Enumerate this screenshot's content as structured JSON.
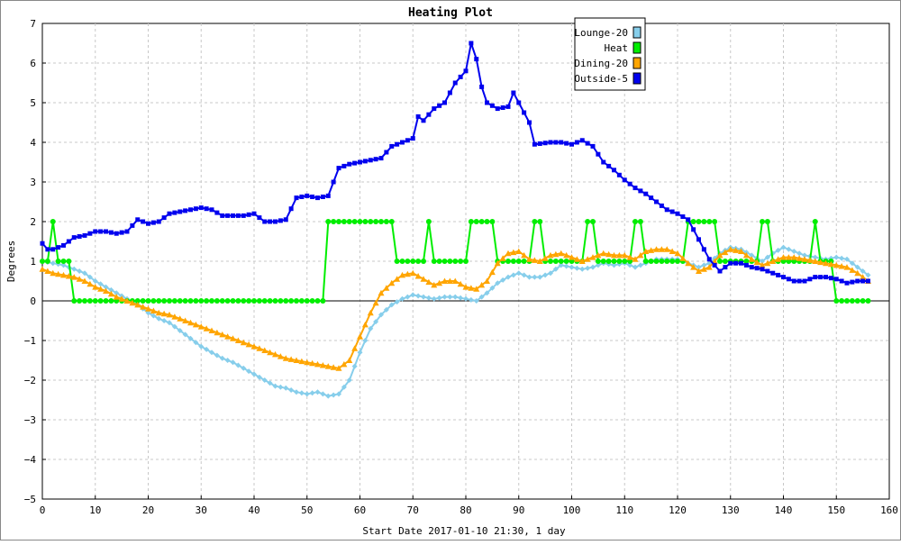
{
  "chart_data": {
    "type": "line",
    "title": "Heating Plot",
    "xlabel": "Start Date 2017-01-10 21:30, 1 day",
    "ylabel": "Degrees",
    "xlim": [
      0,
      160
    ],
    "ylim": [
      -5,
      7
    ],
    "x_ticks": [
      0,
      10,
      20,
      30,
      40,
      50,
      60,
      70,
      80,
      90,
      100,
      110,
      120,
      130,
      140,
      150,
      160
    ],
    "y_ticks": [
      -5,
      -4,
      -3,
      -2,
      -1,
      0,
      1,
      2,
      3,
      4,
      5,
      6,
      7
    ],
    "grid": true,
    "legend_position": "top-right",
    "series": [
      {
        "name": "Lounge-20",
        "color": "#87ceeb",
        "marker": "diamond",
        "points": [
          [
            0,
            1.0
          ],
          [
            2,
            0.95
          ],
          [
            4,
            0.9
          ],
          [
            6,
            0.8
          ],
          [
            8,
            0.7
          ],
          [
            10,
            0.5
          ],
          [
            12,
            0.35
          ],
          [
            14,
            0.2
          ],
          [
            16,
            0.05
          ],
          [
            18,
            -0.1
          ],
          [
            20,
            -0.3
          ],
          [
            22,
            -0.45
          ],
          [
            24,
            -0.55
          ],
          [
            26,
            -0.75
          ],
          [
            28,
            -0.95
          ],
          [
            30,
            -1.15
          ],
          [
            32,
            -1.3
          ],
          [
            34,
            -1.45
          ],
          [
            36,
            -1.55
          ],
          [
            38,
            -1.7
          ],
          [
            40,
            -1.85
          ],
          [
            42,
            -2.0
          ],
          [
            44,
            -2.15
          ],
          [
            46,
            -2.2
          ],
          [
            48,
            -2.3
          ],
          [
            50,
            -2.35
          ],
          [
            52,
            -2.3
          ],
          [
            54,
            -2.4
          ],
          [
            56,
            -2.35
          ],
          [
            58,
            -2.0
          ],
          [
            60,
            -1.3
          ],
          [
            62,
            -0.7
          ],
          [
            64,
            -0.35
          ],
          [
            66,
            -0.1
          ],
          [
            68,
            0.05
          ],
          [
            70,
            0.15
          ],
          [
            72,
            0.1
          ],
          [
            74,
            0.05
          ],
          [
            76,
            0.1
          ],
          [
            78,
            0.1
          ],
          [
            80,
            0.05
          ],
          [
            82,
            0.0
          ],
          [
            84,
            0.2
          ],
          [
            86,
            0.45
          ],
          [
            88,
            0.6
          ],
          [
            90,
            0.7
          ],
          [
            92,
            0.6
          ],
          [
            94,
            0.6
          ],
          [
            96,
            0.7
          ],
          [
            98,
            0.9
          ],
          [
            100,
            0.85
          ],
          [
            102,
            0.8
          ],
          [
            104,
            0.85
          ],
          [
            106,
            0.95
          ],
          [
            108,
            0.9
          ],
          [
            110,
            0.95
          ],
          [
            112,
            0.85
          ],
          [
            114,
            0.95
          ],
          [
            116,
            1.05
          ],
          [
            118,
            1.05
          ],
          [
            120,
            1.05
          ],
          [
            122,
            0.95
          ],
          [
            124,
            0.85
          ],
          [
            126,
            0.95
          ],
          [
            128,
            1.2
          ],
          [
            130,
            1.35
          ],
          [
            132,
            1.3
          ],
          [
            134,
            1.15
          ],
          [
            136,
            1.0
          ],
          [
            138,
            1.2
          ],
          [
            140,
            1.35
          ],
          [
            142,
            1.25
          ],
          [
            144,
            1.15
          ],
          [
            146,
            1.1
          ],
          [
            148,
            1.05
          ],
          [
            150,
            1.1
          ],
          [
            152,
            1.05
          ],
          [
            154,
            0.85
          ],
          [
            156,
            0.65
          ]
        ]
      },
      {
        "name": "Heat",
        "color": "#00ee00",
        "marker": "circle",
        "points": [
          [
            0,
            1
          ],
          [
            1,
            1
          ],
          [
            2,
            2
          ],
          [
            3,
            1
          ],
          [
            4,
            1
          ],
          [
            5,
            1
          ],
          [
            6,
            0
          ],
          [
            53,
            0
          ],
          [
            54,
            2
          ],
          [
            66,
            2
          ],
          [
            67,
            1
          ],
          [
            72,
            1
          ],
          [
            73,
            2
          ],
          [
            74,
            1
          ],
          [
            80,
            1
          ],
          [
            81,
            2
          ],
          [
            85,
            2
          ],
          [
            86,
            1
          ],
          [
            92,
            1
          ],
          [
            93,
            2
          ],
          [
            94,
            2
          ],
          [
            95,
            1
          ],
          [
            102,
            1
          ],
          [
            103,
            2
          ],
          [
            104,
            2
          ],
          [
            105,
            1
          ],
          [
            111,
            1
          ],
          [
            112,
            2
          ],
          [
            113,
            2
          ],
          [
            114,
            1
          ],
          [
            121,
            1
          ],
          [
            122,
            2
          ],
          [
            127,
            2
          ],
          [
            128,
            1
          ],
          [
            135,
            1
          ],
          [
            136,
            2
          ],
          [
            137,
            2
          ],
          [
            138,
            1
          ],
          [
            145,
            1
          ],
          [
            146,
            2
          ],
          [
            147,
            1
          ],
          [
            149,
            1
          ],
          [
            150,
            0
          ],
          [
            156,
            0
          ]
        ]
      },
      {
        "name": "Dining-20",
        "color": "#ffa500",
        "marker": "triangle",
        "points": [
          [
            0,
            0.8
          ],
          [
            2,
            0.7
          ],
          [
            4,
            0.65
          ],
          [
            6,
            0.6
          ],
          [
            8,
            0.5
          ],
          [
            10,
            0.35
          ],
          [
            12,
            0.25
          ],
          [
            14,
            0.1
          ],
          [
            16,
            0.0
          ],
          [
            18,
            -0.1
          ],
          [
            20,
            -0.2
          ],
          [
            22,
            -0.3
          ],
          [
            24,
            -0.35
          ],
          [
            26,
            -0.45
          ],
          [
            28,
            -0.55
          ],
          [
            30,
            -0.65
          ],
          [
            32,
            -0.75
          ],
          [
            34,
            -0.85
          ],
          [
            36,
            -0.95
          ],
          [
            38,
            -1.05
          ],
          [
            40,
            -1.15
          ],
          [
            42,
            -1.25
          ],
          [
            44,
            -1.35
          ],
          [
            46,
            -1.45
          ],
          [
            48,
            -1.5
          ],
          [
            50,
            -1.55
          ],
          [
            52,
            -1.6
          ],
          [
            54,
            -1.65
          ],
          [
            56,
            -1.7
          ],
          [
            58,
            -1.5
          ],
          [
            60,
            -0.9
          ],
          [
            62,
            -0.3
          ],
          [
            64,
            0.2
          ],
          [
            66,
            0.45
          ],
          [
            68,
            0.65
          ],
          [
            70,
            0.7
          ],
          [
            72,
            0.55
          ],
          [
            74,
            0.4
          ],
          [
            76,
            0.5
          ],
          [
            78,
            0.5
          ],
          [
            80,
            0.35
          ],
          [
            82,
            0.3
          ],
          [
            84,
            0.5
          ],
          [
            86,
            0.95
          ],
          [
            88,
            1.2
          ],
          [
            90,
            1.25
          ],
          [
            92,
            1.05
          ],
          [
            94,
            1.0
          ],
          [
            96,
            1.15
          ],
          [
            98,
            1.2
          ],
          [
            100,
            1.1
          ],
          [
            102,
            1.0
          ],
          [
            104,
            1.1
          ],
          [
            106,
            1.2
          ],
          [
            108,
            1.15
          ],
          [
            110,
            1.15
          ],
          [
            112,
            1.05
          ],
          [
            114,
            1.25
          ],
          [
            116,
            1.3
          ],
          [
            118,
            1.3
          ],
          [
            120,
            1.2
          ],
          [
            122,
            0.95
          ],
          [
            124,
            0.75
          ],
          [
            126,
            0.85
          ],
          [
            128,
            1.15
          ],
          [
            130,
            1.3
          ],
          [
            132,
            1.25
          ],
          [
            134,
            1.05
          ],
          [
            136,
            0.9
          ],
          [
            138,
            1.0
          ],
          [
            140,
            1.1
          ],
          [
            142,
            1.1
          ],
          [
            144,
            1.05
          ],
          [
            146,
            1.0
          ],
          [
            148,
            0.95
          ],
          [
            150,
            0.9
          ],
          [
            152,
            0.85
          ],
          [
            154,
            0.7
          ],
          [
            156,
            0.5
          ]
        ]
      },
      {
        "name": "Outside-5",
        "color": "#0000ee",
        "marker": "square",
        "points": [
          [
            0,
            1.45
          ],
          [
            1,
            1.3
          ],
          [
            2,
            1.3
          ],
          [
            4,
            1.4
          ],
          [
            6,
            1.6
          ],
          [
            8,
            1.65
          ],
          [
            10,
            1.75
          ],
          [
            12,
            1.75
          ],
          [
            14,
            1.7
          ],
          [
            16,
            1.75
          ],
          [
            18,
            2.05
          ],
          [
            20,
            1.95
          ],
          [
            22,
            2.0
          ],
          [
            24,
            2.2
          ],
          [
            26,
            2.25
          ],
          [
            28,
            2.3
          ],
          [
            30,
            2.35
          ],
          [
            32,
            2.3
          ],
          [
            34,
            2.15
          ],
          [
            36,
            2.15
          ],
          [
            38,
            2.15
          ],
          [
            40,
            2.2
          ],
          [
            42,
            2.0
          ],
          [
            44,
            2.0
          ],
          [
            46,
            2.05
          ],
          [
            48,
            2.6
          ],
          [
            50,
            2.65
          ],
          [
            52,
            2.6
          ],
          [
            54,
            2.65
          ],
          [
            56,
            3.35
          ],
          [
            58,
            3.45
          ],
          [
            60,
            3.5
          ],
          [
            62,
            3.55
          ],
          [
            64,
            3.6
          ],
          [
            66,
            3.9
          ],
          [
            68,
            4.0
          ],
          [
            70,
            4.1
          ],
          [
            71,
            4.65
          ],
          [
            72,
            4.55
          ],
          [
            74,
            4.85
          ],
          [
            76,
            5.0
          ],
          [
            78,
            5.5
          ],
          [
            80,
            5.8
          ],
          [
            81,
            6.5
          ],
          [
            82,
            6.1
          ],
          [
            83,
            5.4
          ],
          [
            84,
            5.0
          ],
          [
            86,
            4.85
          ],
          [
            88,
            4.9
          ],
          [
            89,
            5.25
          ],
          [
            90,
            5.0
          ],
          [
            92,
            4.5
          ],
          [
            93,
            3.95
          ],
          [
            96,
            4.0
          ],
          [
            98,
            4.0
          ],
          [
            100,
            3.95
          ],
          [
            102,
            4.05
          ],
          [
            104,
            3.9
          ],
          [
            106,
            3.5
          ],
          [
            108,
            3.3
          ],
          [
            110,
            3.05
          ],
          [
            112,
            2.85
          ],
          [
            114,
            2.7
          ],
          [
            116,
            2.5
          ],
          [
            118,
            2.3
          ],
          [
            120,
            2.2
          ],
          [
            122,
            2.05
          ],
          [
            124,
            1.55
          ],
          [
            126,
            1.05
          ],
          [
            128,
            0.75
          ],
          [
            130,
            0.95
          ],
          [
            132,
            0.95
          ],
          [
            134,
            0.85
          ],
          [
            136,
            0.8
          ],
          [
            138,
            0.7
          ],
          [
            140,
            0.6
          ],
          [
            142,
            0.5
          ],
          [
            144,
            0.5
          ],
          [
            146,
            0.6
          ],
          [
            148,
            0.6
          ],
          [
            150,
            0.55
          ],
          [
            152,
            0.45
          ],
          [
            154,
            0.5
          ],
          [
            156,
            0.5
          ]
        ]
      }
    ]
  }
}
